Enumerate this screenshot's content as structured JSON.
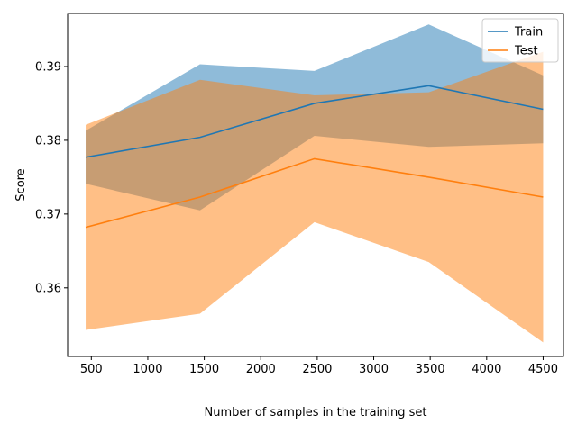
{
  "chart_data": {
    "type": "line",
    "xlabel": "Number of samples in the training set",
    "ylabel": "Score",
    "xlim": [
      290,
      4680
    ],
    "ylim": [
      0.3507,
      0.3972
    ],
    "xticks": [
      500,
      1000,
      1500,
      2000,
      2500,
      3000,
      3500,
      4000,
      4500
    ],
    "yticks": [
      0.36,
      0.37,
      0.38,
      0.39
    ],
    "ytick_labels": [
      "0.36",
      "0.37",
      "0.38",
      "0.39"
    ],
    "legend_position": "top-right",
    "x": [
      450,
      1462,
      2475,
      3487,
      4500
    ],
    "series": [
      {
        "name": "Train",
        "color": "#1f77b4",
        "band_color": "#1f77b4",
        "band_opacity": 0.5,
        "mean": [
          0.3777,
          0.3804,
          0.385,
          0.3874,
          0.3842
        ],
        "upper": [
          0.3813,
          0.3903,
          0.3894,
          0.3957,
          0.3888
        ],
        "lower": [
          0.3741,
          0.3705,
          0.3806,
          0.3791,
          0.3796
        ]
      },
      {
        "name": "Test",
        "color": "#ff7f0e",
        "band_color": "#ff7f0e",
        "band_opacity": 0.5,
        "mean": [
          0.3682,
          0.3723,
          0.3775,
          0.375,
          0.3723
        ],
        "upper": [
          0.3821,
          0.3882,
          0.3861,
          0.3865,
          0.392
        ],
        "lower": [
          0.3543,
          0.3565,
          0.3689,
          0.3635,
          0.3526
        ]
      }
    ]
  }
}
